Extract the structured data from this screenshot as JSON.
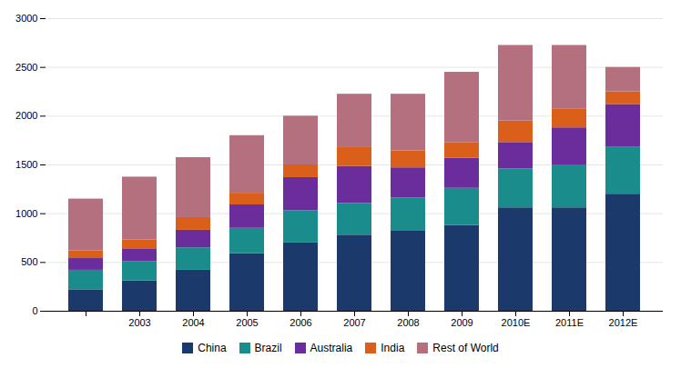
{
  "chart_data": {
    "type": "bar",
    "stacked": true,
    "categories": [
      null,
      "2003",
      "2004",
      "2005",
      "2006",
      "2007",
      "2008",
      "2009",
      "2010E",
      "2011E",
      "2012E"
    ],
    "series": [
      {
        "name": "China",
        "color": "#1b3a6b",
        "values": [
          220,
          310,
          420,
          590,
          700,
          780,
          820,
          880,
          1060,
          1060,
          1200
        ]
      },
      {
        "name": "Brazil",
        "color": "#1a8c8c",
        "values": [
          200,
          200,
          230,
          260,
          330,
          325,
          340,
          380,
          400,
          440,
          480
        ]
      },
      {
        "name": "Australia",
        "color": "#6b2d9b",
        "values": [
          120,
          130,
          180,
          240,
          340,
          380,
          310,
          310,
          270,
          380,
          440
        ]
      },
      {
        "name": "India",
        "color": "#d95f1a",
        "values": [
          80,
          90,
          130,
          120,
          130,
          200,
          175,
          160,
          220,
          190,
          130
        ]
      },
      {
        "name": "Rest of World",
        "color": "#b57080",
        "values": [
          530,
          645,
          615,
          590,
          500,
          540,
          580,
          720,
          775,
          655,
          250
        ]
      }
    ],
    "ylim": [
      0,
      3000
    ],
    "yticks": [
      0,
      500,
      1000,
      1500,
      2000,
      2500,
      3000
    ],
    "grid": true,
    "legend": "bottom"
  }
}
